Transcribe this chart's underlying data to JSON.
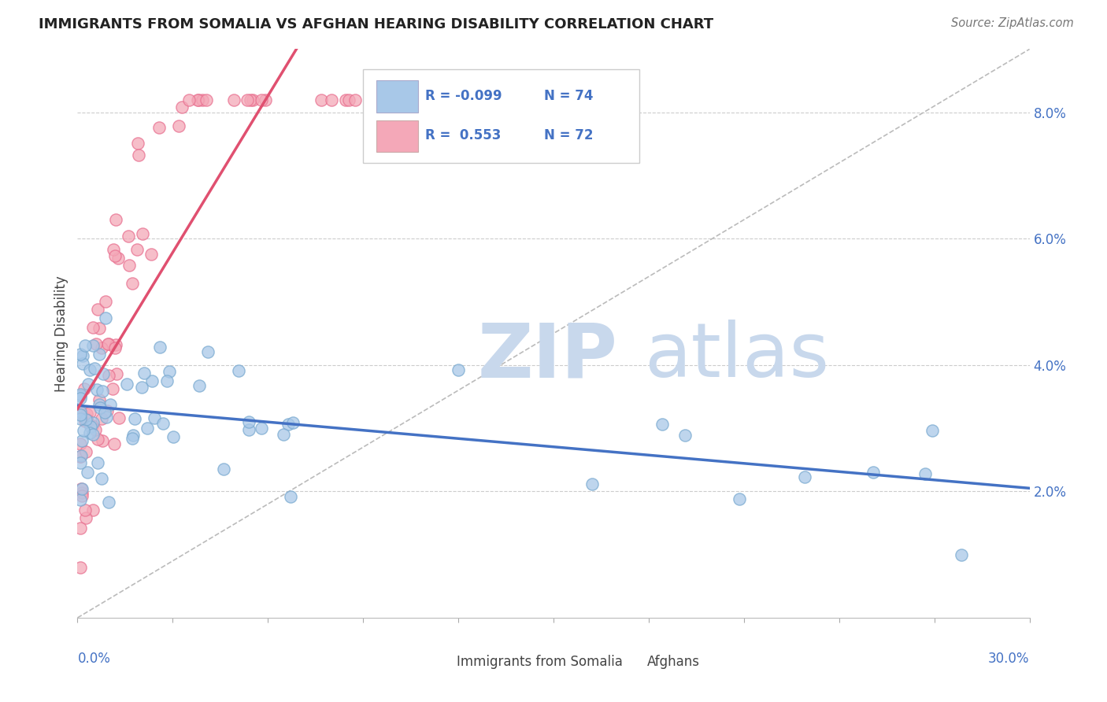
{
  "title": "IMMIGRANTS FROM SOMALIA VS AFGHAN HEARING DISABILITY CORRELATION CHART",
  "source": "Source: ZipAtlas.com",
  "ylabel": "Hearing Disability",
  "yaxis_ticks": [
    "2.0%",
    "4.0%",
    "6.0%",
    "8.0%"
  ],
  "yaxis_values": [
    0.02,
    0.04,
    0.06,
    0.08
  ],
  "xlim": [
    0.0,
    0.3
  ],
  "ylim": [
    0.0,
    0.09
  ],
  "color_somalia": "#a8c8e8",
  "color_afghan": "#f4a8b8",
  "color_somalia_edge": "#7aaad0",
  "color_afghan_edge": "#e87090",
  "color_trendline_somalia": "#4472c4",
  "color_trendline_afghan": "#e05070",
  "color_refline": "#bbbbbb",
  "color_grid": "#cccccc",
  "watermark_zip": "ZIP",
  "watermark_atlas": "atlas",
  "watermark_color": "#c8d8ec",
  "background_color": "#ffffff",
  "legend_items": [
    {
      "label_r": "R = -0.099",
      "label_n": "N = 74",
      "color": "#a8c8e8"
    },
    {
      "label_r": "R =  0.553",
      "label_n": "N = 72",
      "color": "#f4a8b8"
    }
  ]
}
